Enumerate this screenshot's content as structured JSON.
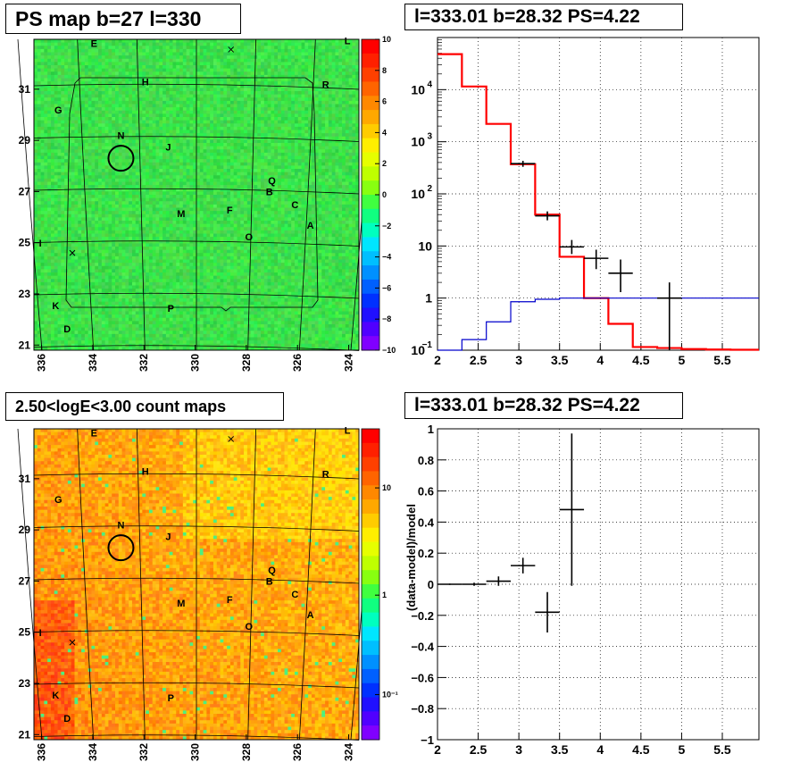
{
  "colors": {
    "map_green": "#3ee64a",
    "map_orange": "#f2661c",
    "hist_red": "#ff0000",
    "hist_blue": "#0000cc",
    "axis": "#000000"
  },
  "panels": {
    "top_left_title": "PS map b=27 l=330",
    "top_right_title": "l=333.01 b=28.32 PS=4.22",
    "bottom_left_title": "2.50<logE<3.00 count maps",
    "bottom_right_title": "l=333.01 b=28.32 PS=4.22"
  },
  "maps": {
    "x_ticks": [
      "336",
      "334",
      "332",
      "330",
      "328",
      "326",
      "324"
    ],
    "y_ticks": [
      "31",
      "29",
      "27",
      "25",
      "23",
      "21"
    ],
    "source_labels": [
      {
        "t": "E",
        "l": 333.95,
        "b": 32.65
      },
      {
        "t": "L",
        "l": 324.05,
        "b": 32.75
      },
      {
        "t": "H",
        "l": 331.95,
        "b": 31.15
      },
      {
        "t": "R",
        "l": 324.9,
        "b": 31.05
      },
      {
        "t": "G",
        "l": 335.35,
        "b": 30.05
      },
      {
        "t": "N",
        "l": 332.9,
        "b": 29.05
      },
      {
        "t": "J",
        "l": 331.05,
        "b": 28.6
      },
      {
        "t": "Q",
        "l": 327.0,
        "b": 27.3
      },
      {
        "t": "B",
        "l": 327.1,
        "b": 26.85
      },
      {
        "t": "C",
        "l": 326.1,
        "b": 26.35
      },
      {
        "t": "M",
        "l": 330.55,
        "b": 26.0
      },
      {
        "t": "F",
        "l": 328.65,
        "b": 26.15
      },
      {
        "t": "A",
        "l": 325.5,
        "b": 25.55
      },
      {
        "t": "O",
        "l": 327.9,
        "b": 25.1
      },
      {
        "t": "I",
        "l": 336.05,
        "b": 24.85
      },
      {
        "t": "K",
        "l": 335.45,
        "b": 22.4
      },
      {
        "t": "P",
        "l": 330.95,
        "b": 22.3
      },
      {
        "t": "D",
        "l": 335.0,
        "b": 21.5
      }
    ],
    "ps_colorbar_ticks": [
      "10",
      "8",
      "6",
      "4",
      "2",
      "0",
      "−2",
      "−4",
      "−6",
      "−8",
      "−10"
    ],
    "count_colorbar_ticks": [
      "10",
      "1",
      "10⁻¹"
    ]
  },
  "chart_data": [
    {
      "type": "line",
      "title": "l=333.01 b=28.32 PS=4.22",
      "xlabel": "",
      "ylabel": "",
      "xlim": [
        2,
        5.95
      ],
      "ylim": [
        0.1,
        100000
      ],
      "yscale": "log",
      "grid": true,
      "x_ticks": [
        "2",
        "2.5",
        "3",
        "3.5",
        "4",
        "4.5",
        "5",
        "5.5"
      ],
      "y_ticks": [
        {
          "v": 10000,
          "label": "10",
          "exp": "4"
        },
        {
          "v": 1000,
          "label": "10",
          "exp": "3"
        },
        {
          "v": 100,
          "label": "10",
          "exp": "2"
        },
        {
          "v": 10,
          "label": "10",
          "exp": ""
        },
        {
          "v": 1,
          "label": "1",
          "exp": ""
        },
        {
          "v": 0.1,
          "label": "10",
          "exp": "−1"
        }
      ],
      "series": [
        {
          "color": "#ff0000",
          "bin_edges": [
            2.0,
            2.3,
            2.6,
            2.9,
            3.2,
            3.5,
            3.8,
            4.1,
            4.4,
            4.7,
            5.0,
            5.3,
            5.6,
            5.95
          ],
          "values": [
            48000,
            11500,
            2200,
            370,
            40,
            6.2,
            1.0,
            0.32,
            0.115,
            0.11,
            0.105,
            0.103,
            0.102
          ]
        },
        {
          "color": "#0000cc",
          "bin_edges": [
            2.0,
            2.3,
            2.6,
            2.9,
            3.2,
            3.5,
            3.8,
            4.1,
            4.4,
            4.7,
            5.0,
            5.3,
            5.6,
            5.95
          ],
          "values": [
            0.09,
            0.16,
            0.35,
            0.85,
            0.95,
            1.0,
            1.0,
            1.0,
            1.0,
            1.0,
            1.0,
            1.0,
            1.0
          ]
        }
      ],
      "points": [
        {
          "x": 3.05,
          "xerr": 0.15,
          "y": 380,
          "ylo": 330,
          "yhi": 430
        },
        {
          "x": 3.35,
          "xerr": 0.15,
          "y": 38,
          "ylo": 31,
          "yhi": 46
        },
        {
          "x": 3.65,
          "xerr": 0.15,
          "y": 9.6,
          "ylo": 7,
          "yhi": 13
        },
        {
          "x": 3.95,
          "xerr": 0.15,
          "y": 5.8,
          "ylo": 3.6,
          "yhi": 8.5
        },
        {
          "x": 4.25,
          "xerr": 0.15,
          "y": 3.0,
          "ylo": 1.3,
          "yhi": 5.5
        },
        {
          "x": 4.85,
          "xerr": 0.15,
          "y": 1.0,
          "ylo": 0.1,
          "yhi": 2.0
        }
      ]
    },
    {
      "type": "scatter",
      "title": "l=333.01 b=28.32 PS=4.22",
      "xlabel": "",
      "ylabel": "(data-model)/model",
      "xlim": [
        2,
        5.95
      ],
      "ylim": [
        -1,
        1
      ],
      "grid": true,
      "x_ticks": [
        "2",
        "2.5",
        "3",
        "3.5",
        "4",
        "4.5",
        "5",
        "5.5"
      ],
      "y_ticks": [
        "1",
        "0.8",
        "0.6",
        "0.4",
        "0.2",
        "0",
        "−0.2",
        "−0.4",
        "−0.6",
        "−0.8",
        "−1"
      ],
      "points": [
        {
          "x": 2.15,
          "xerr": 0.15,
          "y": 0.0,
          "ylo": -0.005,
          "yhi": 0.005
        },
        {
          "x": 2.45,
          "xerr": 0.15,
          "y": 0.0,
          "ylo": -0.01,
          "yhi": 0.01
        },
        {
          "x": 2.75,
          "xerr": 0.15,
          "y": 0.02,
          "ylo": -0.01,
          "yhi": 0.05
        },
        {
          "x": 3.05,
          "xerr": 0.15,
          "y": 0.12,
          "ylo": 0.07,
          "yhi": 0.17
        },
        {
          "x": 3.35,
          "xerr": 0.15,
          "y": -0.18,
          "ylo": -0.31,
          "yhi": -0.05
        },
        {
          "x": 3.65,
          "xerr": 0.15,
          "y": 0.48,
          "ylo": -0.01,
          "yhi": 0.97
        }
      ]
    }
  ]
}
